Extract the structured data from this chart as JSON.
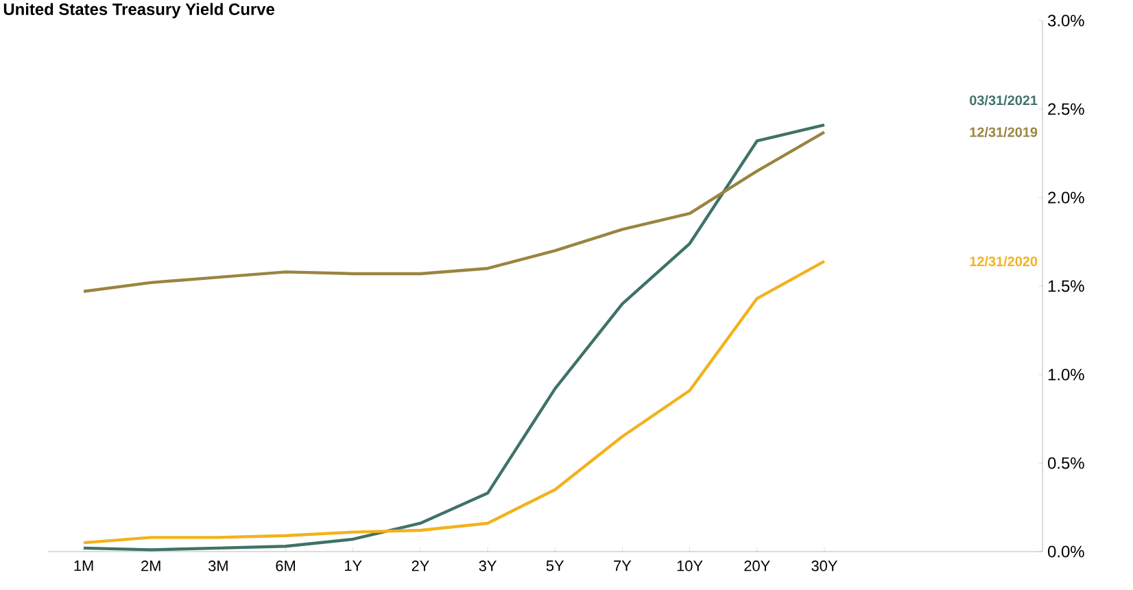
{
  "chart_data": {
    "type": "line",
    "title": "United States Treasury Yield Curve",
    "categories": [
      "1M",
      "2M",
      "3M",
      "6M",
      "1Y",
      "2Y",
      "3Y",
      "5Y",
      "7Y",
      "10Y",
      "20Y",
      "30Y"
    ],
    "series": [
      {
        "name": "03/31/2021",
        "color": "#3f7268",
        "values": [
          0.02,
          0.01,
          0.02,
          0.03,
          0.07,
          0.16,
          0.33,
          0.92,
          1.4,
          1.74,
          2.32,
          2.41
        ]
      },
      {
        "name": "12/31/2019",
        "color": "#9a8440",
        "values": [
          1.47,
          1.52,
          1.55,
          1.58,
          1.57,
          1.57,
          1.6,
          1.7,
          1.82,
          1.91,
          2.15,
          2.37
        ]
      },
      {
        "name": "12/31/2020",
        "color": "#f2b21c",
        "values": [
          0.05,
          0.08,
          0.08,
          0.09,
          0.11,
          0.12,
          0.16,
          0.35,
          0.65,
          0.91,
          1.43,
          1.64
        ]
      }
    ],
    "ylim": [
      0,
      3.0
    ],
    "yticks": [
      {
        "value": 0,
        "label": "0.0%"
      },
      {
        "value": 0.5,
        "label": "0.5%"
      },
      {
        "value": 1.0,
        "label": "1.0%"
      },
      {
        "value": 1.5,
        "label": "1.5%"
      },
      {
        "value": 2.0,
        "label": "2.0%"
      },
      {
        "value": 2.5,
        "label": "2.5%"
      },
      {
        "value": 3.0,
        "label": "3.0%"
      }
    ],
    "grid": false,
    "marker": "none",
    "line_style": "solid"
  }
}
